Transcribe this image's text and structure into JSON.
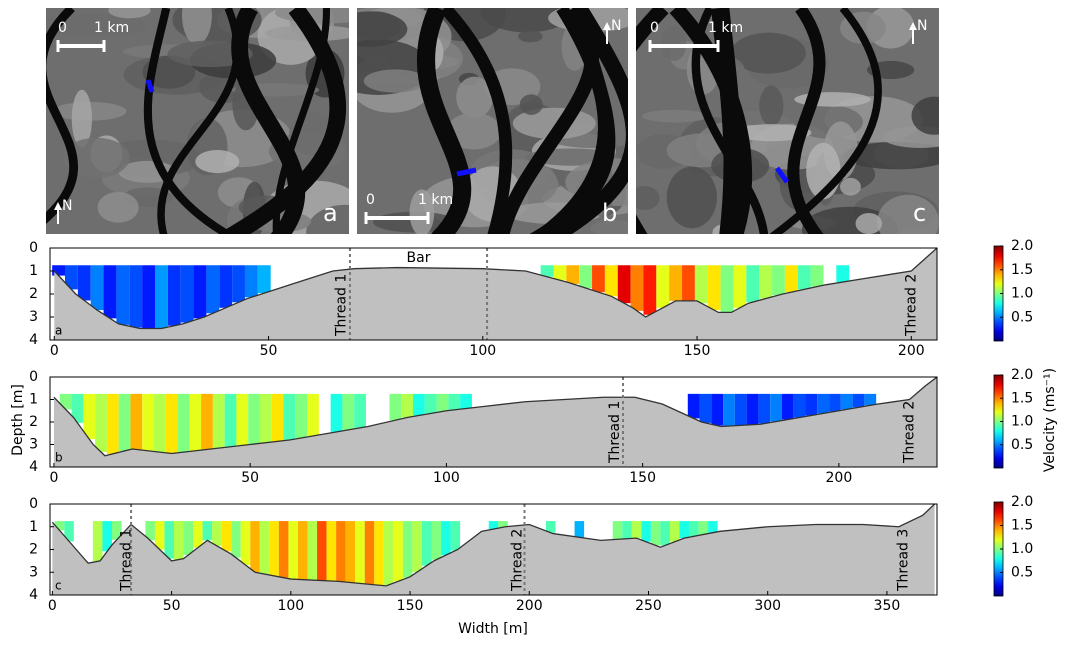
{
  "images": [
    {
      "scale_zero": "0",
      "scale_label": "1 km",
      "north": "N",
      "letter": "a"
    },
    {
      "scale_zero": "0",
      "scale_label": "1 km",
      "north": "N",
      "letter": "b"
    },
    {
      "scale_zero": "0",
      "scale_label": "1 km",
      "north": "N",
      "letter": "c"
    }
  ],
  "ylabel": "Depth [m]",
  "xlabel": "Width [m]",
  "colorbar_label": "Velocity (ms⁻¹)",
  "chart_data": [
    {
      "type": "section",
      "panel": "a",
      "xlim": [
        -1,
        206
      ],
      "xticks": [
        0,
        50,
        100,
        150,
        200
      ],
      "ylim": [
        0,
        4
      ],
      "yticks": [
        0,
        1,
        2,
        3,
        4
      ],
      "y_inverted": true,
      "bed": {
        "x": [
          0,
          5,
          10,
          15,
          20,
          25,
          30,
          35,
          40,
          45,
          50,
          55,
          60,
          65,
          70,
          80,
          100,
          110,
          120,
          125,
          130,
          135,
          138,
          140,
          145,
          150,
          155,
          158,
          162,
          170,
          180,
          190,
          200,
          203,
          206
        ],
        "values": [
          1.0,
          2.0,
          2.7,
          3.3,
          3.5,
          3.5,
          3.3,
          3.0,
          2.6,
          2.2,
          1.9,
          1.6,
          1.3,
          1.0,
          0.9,
          0.85,
          0.9,
          1.0,
          1.5,
          1.8,
          2.1,
          2.6,
          3.0,
          2.8,
          2.3,
          2.3,
          2.8,
          2.8,
          2.4,
          2.0,
          1.6,
          1.3,
          1.0,
          0.5,
          0
        ]
      },
      "velocity": {
        "x": [
          1,
          4,
          7,
          10,
          13,
          16,
          19,
          22,
          25,
          28,
          31,
          34,
          37,
          40,
          43,
          46,
          49,
          115,
          118,
          121,
          124,
          127,
          130,
          133,
          136,
          139,
          142,
          145,
          148,
          151,
          154,
          157,
          160,
          163,
          166,
          169,
          172,
          175,
          178,
          184
        ],
        "values": [
          0.3,
          0.4,
          0.35,
          0.5,
          0.3,
          0.45,
          0.4,
          0.3,
          0.55,
          0.35,
          0.4,
          0.3,
          0.45,
          0.35,
          0.4,
          0.5,
          0.6,
          0.9,
          1.2,
          1.4,
          1.0,
          1.6,
          1.3,
          1.8,
          1.5,
          1.7,
          1.2,
          1.4,
          1.6,
          1.1,
          1.3,
          1.0,
          1.2,
          0.9,
          1.1,
          1.0,
          1.3,
          0.9,
          1.0,
          0.8
        ]
      },
      "dividers": [
        69,
        101
      ],
      "annotations": [
        {
          "text": "Thread 1",
          "x": 67,
          "rotated": true
        },
        {
          "text": "Bar",
          "x": 85,
          "rotated": false
        },
        {
          "text": "Thread 2",
          "x": 200,
          "rotated": true
        }
      ],
      "colorbar": {
        "lim": [
          0,
          2
        ],
        "ticks": [
          {
            "value": 2,
            "label": "2.0"
          },
          {
            "value": 1.5,
            "label": "1.5"
          },
          {
            "value": 1,
            "label": "1.0"
          },
          {
            "value": 0.5,
            "label": "0.5"
          }
        ]
      }
    },
    {
      "type": "section",
      "panel": "b",
      "xlim": [
        -1,
        225
      ],
      "xticks": [
        0,
        50,
        100,
        150,
        200
      ],
      "ylim": [
        0,
        4
      ],
      "yticks": [
        0,
        1,
        2,
        3,
        4
      ],
      "y_inverted": true,
      "bed": {
        "x": [
          0,
          5,
          10,
          13,
          20,
          30,
          40,
          50,
          60,
          70,
          80,
          90,
          100,
          110,
          120,
          130,
          140,
          148,
          155,
          160,
          165,
          170,
          180,
          190,
          200,
          210,
          218,
          222,
          225
        ],
        "values": [
          0.9,
          1.8,
          3.0,
          3.5,
          3.2,
          3.4,
          3.2,
          3.0,
          2.8,
          2.5,
          2.2,
          1.8,
          1.5,
          1.3,
          1.1,
          1.0,
          0.9,
          0.9,
          1.2,
          1.6,
          2.0,
          2.2,
          2.1,
          1.8,
          1.5,
          1.2,
          1.0,
          0.4,
          0
        ]
      },
      "velocity": {
        "x": [
          3,
          6,
          9,
          12,
          15,
          18,
          21,
          24,
          27,
          30,
          33,
          36,
          39,
          42,
          45,
          48,
          51,
          54,
          57,
          60,
          63,
          66,
          72,
          75,
          78,
          87,
          90,
          93,
          96,
          99,
          102,
          105,
          163,
          166,
          169,
          172,
          175,
          178,
          181,
          184,
          187,
          190,
          193,
          196,
          199,
          202,
          205,
          208
        ],
        "values": [
          1.0,
          0.9,
          1.2,
          1.1,
          1.3,
          1.0,
          1.4,
          1.2,
          1.1,
          1.3,
          1.0,
          1.2,
          1.4,
          1.1,
          0.9,
          1.2,
          1.0,
          1.1,
          1.3,
          0.9,
          1.0,
          1.2,
          0.8,
          1.0,
          0.9,
          1.0,
          1.1,
          0.8,
          0.9,
          1.0,
          0.9,
          0.8,
          0.3,
          0.4,
          0.3,
          0.5,
          0.4,
          0.3,
          0.4,
          0.5,
          0.3,
          0.4,
          0.35,
          0.45,
          0.4,
          0.5,
          0.4,
          0.5
        ]
      },
      "dividers": [
        145
      ],
      "annotations": [
        {
          "text": "Thread 1",
          "x": 143,
          "rotated": true
        },
        {
          "text": "Thread 2",
          "x": 218,
          "rotated": true
        }
      ],
      "colorbar": {
        "lim": [
          0,
          2
        ],
        "ticks": [
          {
            "value": 2,
            "label": "2.0"
          },
          {
            "value": 1.5,
            "label": "1.5"
          },
          {
            "value": 1,
            "label": "1.0"
          },
          {
            "value": 0.5,
            "label": "0.5"
          }
        ]
      }
    },
    {
      "type": "section",
      "panel": "c",
      "xlim": [
        -1,
        371
      ],
      "xticks": [
        0,
        50,
        100,
        150,
        200,
        250,
        300,
        350
      ],
      "ylim": [
        0,
        4
      ],
      "yticks": [
        0,
        1,
        2,
        3,
        4
      ],
      "y_inverted": true,
      "bed": {
        "x": [
          0,
          10,
          15,
          20,
          25,
          33,
          40,
          50,
          55,
          65,
          75,
          85,
          100,
          120,
          140,
          150,
          160,
          170,
          180,
          190,
          200,
          210,
          230,
          245,
          255,
          265,
          280,
          300,
          320,
          340,
          355,
          365,
          370
        ],
        "values": [
          0.8,
          2.0,
          2.6,
          2.5,
          1.8,
          0.9,
          1.5,
          2.5,
          2.4,
          1.6,
          2.2,
          3.0,
          3.3,
          3.4,
          3.6,
          3.2,
          2.5,
          2.0,
          1.2,
          1.0,
          0.9,
          1.3,
          1.6,
          1.5,
          1.9,
          1.5,
          1.2,
          1.0,
          0.9,
          0.9,
          1.0,
          0.5,
          0
        ]
      },
      "velocity": {
        "x": [
          3,
          7,
          19,
          23,
          27,
          41,
          45,
          49,
          53,
          57,
          61,
          65,
          69,
          73,
          77,
          81,
          85,
          89,
          93,
          97,
          101,
          105,
          109,
          113,
          117,
          121,
          125,
          129,
          133,
          137,
          141,
          145,
          149,
          153,
          157,
          161,
          165,
          169,
          185,
          189,
          209,
          221,
          237,
          241,
          245,
          249,
          253,
          257,
          261,
          265,
          269,
          273,
          277
        ],
        "values": [
          1.0,
          0.9,
          1.1,
          0.8,
          1.0,
          1.0,
          1.2,
          0.9,
          1.1,
          1.0,
          1.2,
          0.9,
          1.1,
          1.3,
          1.0,
          1.2,
          1.4,
          1.1,
          1.3,
          1.5,
          1.2,
          1.4,
          1.1,
          1.6,
          1.3,
          1.5,
          1.4,
          1.2,
          1.5,
          1.3,
          1.1,
          1.2,
          1.0,
          1.1,
          0.9,
          1.0,
          0.8,
          0.9,
          0.8,
          1.0,
          0.9,
          0.6,
          1.0,
          0.9,
          1.1,
          0.8,
          1.0,
          0.9,
          1.1,
          0.8,
          0.9,
          1.0,
          0.8
        ]
      },
      "dividers": [
        33,
        198
      ],
      "annotations": [
        {
          "text": "Thread 1",
          "x": 31,
          "rotated": true
        },
        {
          "text": "Thread 2",
          "x": 195,
          "rotated": true
        },
        {
          "text": "Thread 3",
          "x": 357,
          "rotated": true
        }
      ],
      "colorbar": {
        "lim": [
          0,
          2
        ],
        "ticks": [
          {
            "value": 2,
            "label": "2.0"
          },
          {
            "value": 1.5,
            "label": "1.5"
          },
          {
            "value": 1,
            "label": "1.0"
          },
          {
            "value": 0.5,
            "label": "0.5"
          }
        ]
      }
    }
  ]
}
